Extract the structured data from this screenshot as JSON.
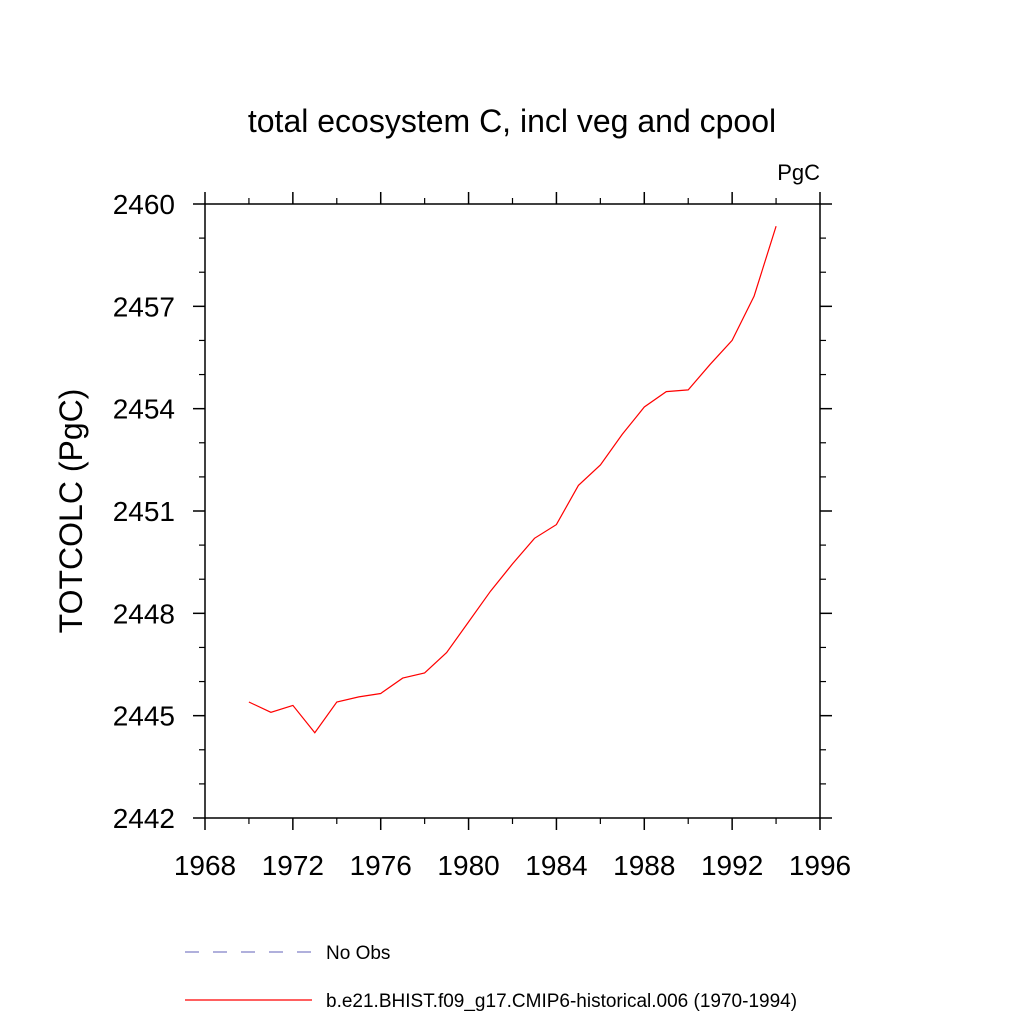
{
  "chart_data": {
    "type": "line",
    "title": "total ecosystem C, incl veg and cpool",
    "units": "PgC",
    "ylabel": "TOTCOLC  (PgC)",
    "xlabel": "",
    "xlim": [
      1968,
      1996
    ],
    "ylim": [
      2442,
      2460
    ],
    "x_ticks": [
      "1968",
      "1972",
      "1976",
      "1980",
      "1984",
      "1988",
      "1992",
      "1996"
    ],
    "y_ticks": [
      "2442",
      "2445",
      "2448",
      "2451",
      "2454",
      "2457",
      "2460"
    ],
    "legend_position": "bottom",
    "series": [
      {
        "name": "No Obs",
        "color": "#8080c8",
        "dash": true,
        "x": [],
        "y": []
      },
      {
        "name": "b.e21.BHIST.f09_g17.CMIP6-historical.006 (1970-1994)",
        "color": "#ff0000",
        "dash": false,
        "x": [
          1970,
          1971,
          1972,
          1973,
          1974,
          1975,
          1976,
          1977,
          1978,
          1979,
          1980,
          1981,
          1982,
          1983,
          1984,
          1985,
          1986,
          1987,
          1988,
          1989,
          1990,
          1991,
          1992,
          1993,
          1994
        ],
        "y": [
          2445.4,
          2445.1,
          2445.3,
          2444.5,
          2445.4,
          2445.55,
          2445.65,
          2446.1,
          2446.25,
          2446.85,
          2447.75,
          2448.65,
          2449.45,
          2450.2,
          2450.6,
          2451.75,
          2452.35,
          2453.25,
          2454.05,
          2454.5,
          2454.55,
          2455.3,
          2456.0,
          2457.3,
          2459.35
        ]
      }
    ]
  }
}
